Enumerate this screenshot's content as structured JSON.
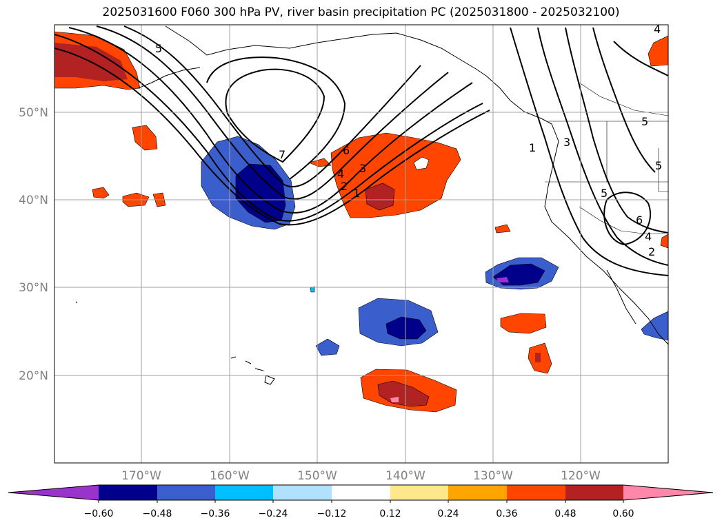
{
  "title": "2025031600 F060 300 hPa PV, river basin precipitation PC (2025031800 - 2025032100)",
  "map": {
    "lat_labels": [
      "50°N",
      "40°N",
      "30°N",
      "20°N"
    ],
    "lon_labels": [
      "170°W",
      "160°W",
      "150°W",
      "140°W",
      "130°W",
      "120°W"
    ],
    "contour_labels": [
      "5",
      "7",
      "6",
      "4",
      "3",
      "2",
      "1",
      "1",
      "3",
      "5",
      "5",
      "6",
      "4",
      "2",
      "4",
      "5"
    ]
  },
  "colorbar": {
    "ticks": [
      "−0.60",
      "−0.48",
      "−0.36",
      "−0.24",
      "−0.12",
      "0.12",
      "0.24",
      "0.36",
      "0.48",
      "0.60"
    ],
    "colors": [
      "#9933cc",
      "#00008b",
      "#3a5fcd",
      "#00bfff",
      "#b0e2ff",
      "#ffffff",
      "#ffe88c",
      "#ffa500",
      "#ff4500",
      "#b22222",
      "#ff88aa"
    ]
  }
}
